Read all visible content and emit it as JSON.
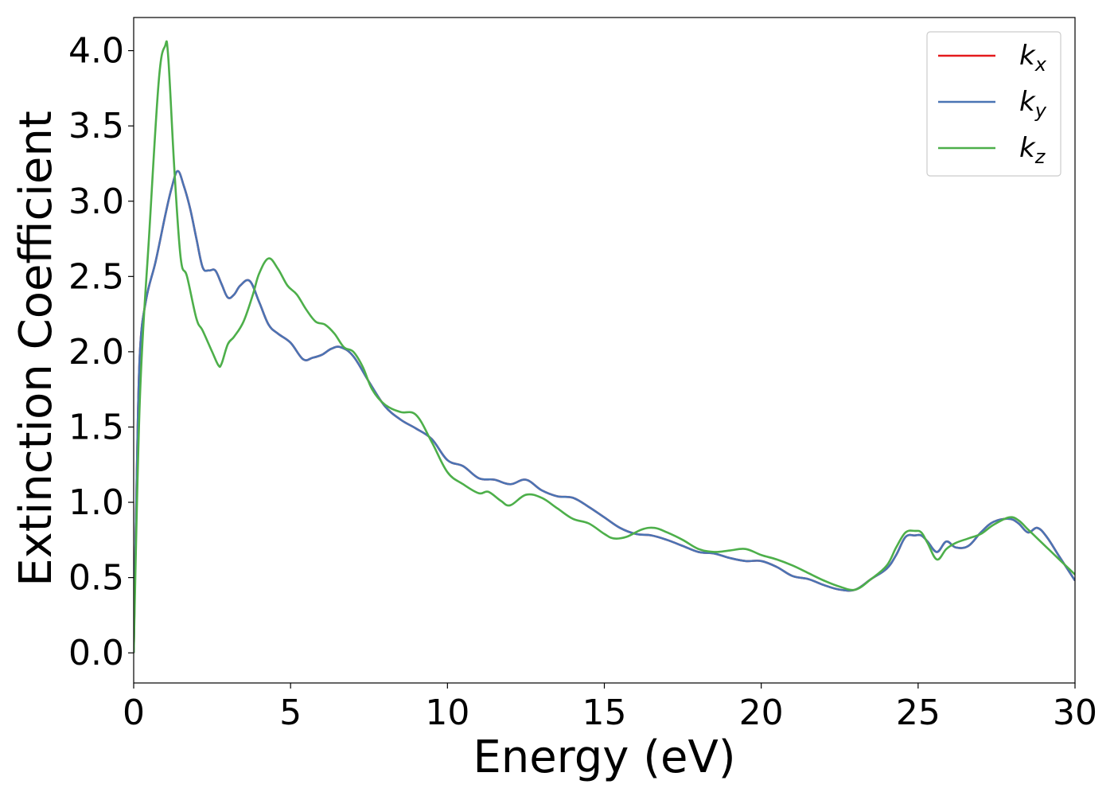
{
  "chart_data": {
    "type": "line",
    "title": "",
    "xlabel": "Energy (eV)",
    "ylabel": "Extinction Coefficient",
    "xlim": [
      0,
      30
    ],
    "ylim": [
      -0.2,
      4.22
    ],
    "x_ticks": [
      0,
      5,
      10,
      15,
      20,
      25,
      30
    ],
    "x_tick_labels": [
      "0",
      "5",
      "10",
      "15",
      "20",
      "25",
      "30"
    ],
    "y_ticks": [
      0.0,
      0.5,
      1.0,
      1.5,
      2.0,
      2.5,
      3.0,
      3.5,
      4.0
    ],
    "y_tick_labels": [
      "0.0",
      "0.5",
      "1.0",
      "1.5",
      "2.0",
      "2.5",
      "3.0",
      "3.5",
      "4.0"
    ],
    "grid": false,
    "legend_position": "top-right",
    "series": [
      {
        "name": "k",
        "subscript": "x",
        "color": "#e41a1c",
        "x": [
          0,
          0.1,
          0.2,
          0.4,
          0.7,
          1.0,
          1.2,
          1.4,
          1.6,
          1.8,
          2.0,
          2.2,
          2.4,
          2.6,
          2.8,
          3.0,
          3.2,
          3.4,
          3.7,
          4.0,
          4.3,
          4.6,
          5.0,
          5.4,
          5.7,
          6.0,
          6.3,
          6.6,
          7.0,
          7.5,
          8.0,
          8.5,
          9.0,
          9.5,
          10.0,
          10.5,
          11.0,
          11.5,
          12.0,
          12.5,
          13.0,
          13.5,
          14.0,
          14.5,
          15.0,
          15.5,
          16.0,
          16.5,
          17.0,
          17.5,
          18.0,
          18.5,
          19.0,
          19.5,
          20.0,
          20.5,
          21.0,
          21.5,
          22.0,
          22.5,
          23.0,
          23.5,
          24.0,
          24.3,
          24.6,
          24.9,
          25.1,
          25.3,
          25.6,
          25.9,
          26.2,
          26.6,
          27.0,
          27.4,
          27.9,
          28.2,
          28.5,
          28.8,
          29.1,
          29.5,
          30.0
        ],
        "values": [
          0.0,
          1.2,
          2.0,
          2.35,
          2.6,
          2.9,
          3.08,
          3.2,
          3.1,
          2.95,
          2.75,
          2.56,
          2.54,
          2.54,
          2.45,
          2.36,
          2.38,
          2.44,
          2.47,
          2.33,
          2.18,
          2.12,
          2.06,
          1.95,
          1.96,
          1.98,
          2.02,
          2.03,
          1.97,
          1.8,
          1.64,
          1.55,
          1.49,
          1.42,
          1.28,
          1.24,
          1.16,
          1.15,
          1.12,
          1.15,
          1.08,
          1.04,
          1.03,
          0.97,
          0.9,
          0.83,
          0.79,
          0.78,
          0.75,
          0.71,
          0.67,
          0.66,
          0.63,
          0.61,
          0.61,
          0.57,
          0.51,
          0.49,
          0.45,
          0.42,
          0.42,
          0.49,
          0.56,
          0.65,
          0.77,
          0.78,
          0.78,
          0.74,
          0.67,
          0.74,
          0.7,
          0.71,
          0.8,
          0.87,
          0.89,
          0.86,
          0.8,
          0.83,
          0.77,
          0.64,
          0.48
        ]
      },
      {
        "name": "k",
        "subscript": "y",
        "color": "#4a74b4",
        "x": [
          0,
          0.1,
          0.2,
          0.4,
          0.7,
          1.0,
          1.2,
          1.4,
          1.6,
          1.8,
          2.0,
          2.2,
          2.4,
          2.6,
          2.8,
          3.0,
          3.2,
          3.4,
          3.7,
          4.0,
          4.3,
          4.6,
          5.0,
          5.4,
          5.7,
          6.0,
          6.3,
          6.6,
          7.0,
          7.5,
          8.0,
          8.5,
          9.0,
          9.5,
          10.0,
          10.5,
          11.0,
          11.5,
          12.0,
          12.5,
          13.0,
          13.5,
          14.0,
          14.5,
          15.0,
          15.5,
          16.0,
          16.5,
          17.0,
          17.5,
          18.0,
          18.5,
          19.0,
          19.5,
          20.0,
          20.5,
          21.0,
          21.5,
          22.0,
          22.5,
          23.0,
          23.5,
          24.0,
          24.3,
          24.6,
          24.9,
          25.1,
          25.3,
          25.6,
          25.9,
          26.2,
          26.6,
          27.0,
          27.4,
          27.9,
          28.2,
          28.5,
          28.8,
          29.1,
          29.5,
          30.0
        ],
        "values": [
          0.0,
          1.2,
          2.0,
          2.35,
          2.6,
          2.9,
          3.08,
          3.2,
          3.1,
          2.95,
          2.75,
          2.56,
          2.54,
          2.54,
          2.45,
          2.36,
          2.38,
          2.44,
          2.47,
          2.33,
          2.18,
          2.12,
          2.06,
          1.95,
          1.96,
          1.98,
          2.02,
          2.03,
          1.97,
          1.8,
          1.64,
          1.55,
          1.49,
          1.42,
          1.28,
          1.24,
          1.16,
          1.15,
          1.12,
          1.15,
          1.08,
          1.04,
          1.03,
          0.97,
          0.9,
          0.83,
          0.79,
          0.78,
          0.75,
          0.71,
          0.67,
          0.66,
          0.63,
          0.61,
          0.61,
          0.57,
          0.51,
          0.49,
          0.45,
          0.42,
          0.42,
          0.49,
          0.56,
          0.65,
          0.77,
          0.78,
          0.78,
          0.74,
          0.67,
          0.74,
          0.7,
          0.71,
          0.8,
          0.87,
          0.89,
          0.86,
          0.8,
          0.83,
          0.77,
          0.64,
          0.48
        ]
      },
      {
        "name": "k",
        "subscript": "z",
        "color": "#4daf4a",
        "x": [
          0,
          0.2,
          0.5,
          0.8,
          1.0,
          1.1,
          1.3,
          1.5,
          1.7,
          2.0,
          2.2,
          2.5,
          2.7,
          2.8,
          3.0,
          3.2,
          3.5,
          3.8,
          4.0,
          4.3,
          4.6,
          4.9,
          5.2,
          5.5,
          5.8,
          6.1,
          6.4,
          6.7,
          7.0,
          7.3,
          7.6,
          8.0,
          8.5,
          9.0,
          9.5,
          10.0,
          10.5,
          11.0,
          11.3,
          11.7,
          12.0,
          12.5,
          13.0,
          13.5,
          14.0,
          14.5,
          15.0,
          15.3,
          15.7,
          16.2,
          16.6,
          17.0,
          17.5,
          18.0,
          18.5,
          19.0,
          19.5,
          20.0,
          20.5,
          21.0,
          21.5,
          22.0,
          22.5,
          23.0,
          23.5,
          24.0,
          24.3,
          24.6,
          24.9,
          25.1,
          25.3,
          25.6,
          25.9,
          26.2,
          26.6,
          27.0,
          27.4,
          27.9,
          28.2,
          28.5,
          28.8,
          29.1,
          29.5,
          30.0
        ],
        "values": [
          0.0,
          1.7,
          2.8,
          3.8,
          4.03,
          3.96,
          3.2,
          2.62,
          2.5,
          2.22,
          2.14,
          2.0,
          1.91,
          1.92,
          2.05,
          2.1,
          2.2,
          2.38,
          2.52,
          2.62,
          2.55,
          2.44,
          2.38,
          2.28,
          2.2,
          2.18,
          2.12,
          2.03,
          2.0,
          1.9,
          1.75,
          1.65,
          1.6,
          1.58,
          1.4,
          1.2,
          1.12,
          1.06,
          1.07,
          1.01,
          0.98,
          1.05,
          1.03,
          0.96,
          0.89,
          0.86,
          0.79,
          0.76,
          0.77,
          0.82,
          0.83,
          0.8,
          0.75,
          0.69,
          0.67,
          0.68,
          0.69,
          0.65,
          0.62,
          0.58,
          0.53,
          0.48,
          0.44,
          0.42,
          0.49,
          0.58,
          0.7,
          0.8,
          0.81,
          0.8,
          0.73,
          0.62,
          0.69,
          0.73,
          0.76,
          0.79,
          0.85,
          0.9,
          0.88,
          0.82,
          0.76,
          0.7,
          0.62,
          0.52
        ]
      }
    ]
  }
}
